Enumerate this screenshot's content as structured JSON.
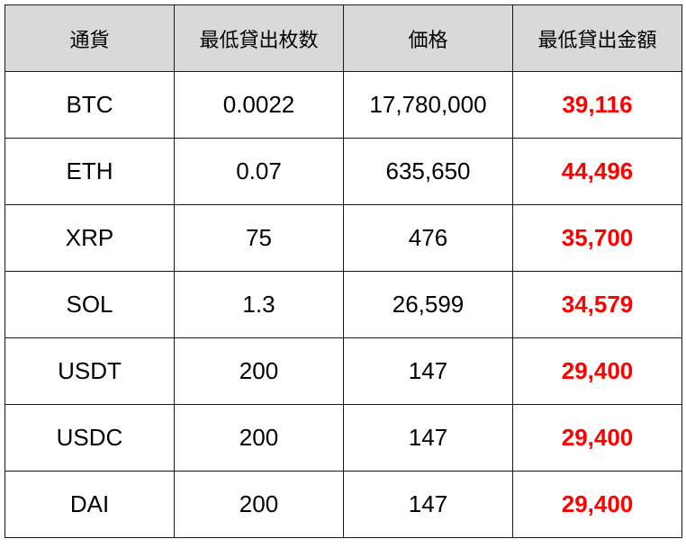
{
  "accent_color": "#ff0000",
  "header_bg": "#d9d9d9",
  "columns": [
    "通貨",
    "最低貸出枚数",
    "価格",
    "最低貸出金額"
  ],
  "rows": [
    {
      "currency": "BTC",
      "min_qty": "0.0022",
      "price": "17,780,000",
      "min_amount": "39,116"
    },
    {
      "currency": "ETH",
      "min_qty": "0.07",
      "price": "635,650",
      "min_amount": "44,496"
    },
    {
      "currency": "XRP",
      "min_qty": "75",
      "price": "476",
      "min_amount": "35,700"
    },
    {
      "currency": "SOL",
      "min_qty": "1.3",
      "price": "26,599",
      "min_amount": "34,579"
    },
    {
      "currency": "USDT",
      "min_qty": "200",
      "price": "147",
      "min_amount": "29,400"
    },
    {
      "currency": "USDC",
      "min_qty": "200",
      "price": "147",
      "min_amount": "29,400"
    },
    {
      "currency": "DAI",
      "min_qty": "200",
      "price": "147",
      "min_amount": "29,400"
    }
  ]
}
